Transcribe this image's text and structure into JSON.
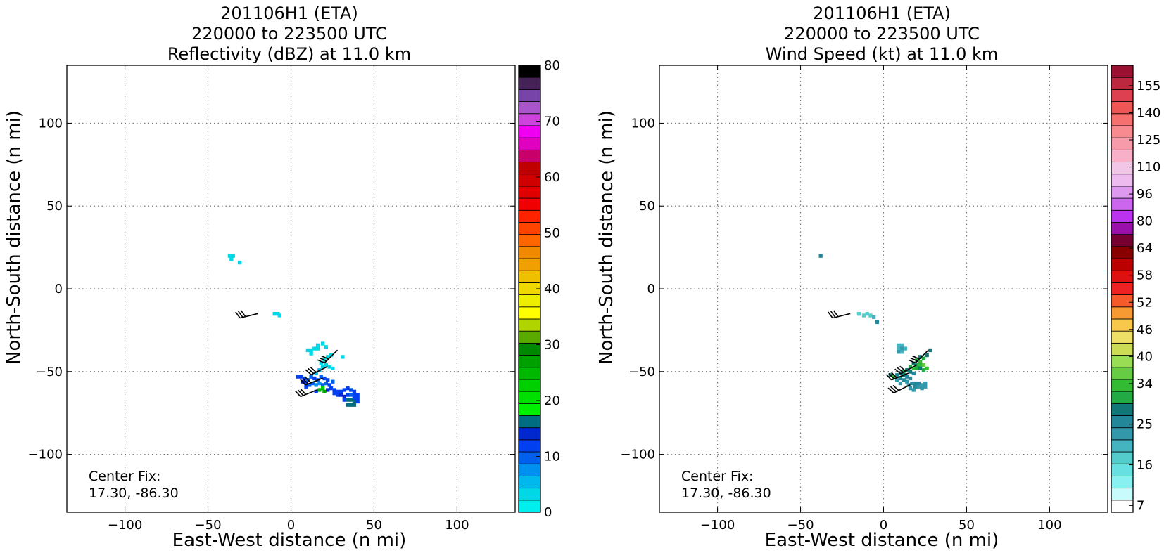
{
  "chart_data": [
    {
      "type": "heatmap",
      "title": [
        "201106H1 (ETA)",
        "220000 to 223500 UTC",
        "Reflectivity (dBZ) at 11.0 km"
      ],
      "xlabel": "East-West distance (n mi)",
      "ylabel": "North-South distance (n mi)",
      "xlim": [
        -135,
        135
      ],
      "ylim": [
        -135,
        135
      ],
      "xticks": [
        -100,
        -50,
        0,
        50,
        100
      ],
      "yticks": [
        -100,
        -50,
        0,
        50,
        100
      ],
      "grid": true,
      "annotation": [
        "Center Fix:",
        "17.30, -86.30"
      ],
      "colorbar": {
        "ticks": [
          "0",
          "10",
          "20",
          "30",
          "40",
          "50",
          "60",
          "70",
          "80"
        ],
        "tick_values": [
          0,
          10,
          20,
          30,
          40,
          50,
          60,
          70,
          80
        ],
        "range": [
          0,
          80
        ],
        "colors": [
          "#00eeee",
          "#00d8e6",
          "#00b8ee",
          "#0090f0",
          "#0060ee",
          "#0040f0",
          "#0028cc",
          "#006e80",
          "#00ee00",
          "#00e000",
          "#00d000",
          "#00b800",
          "#00a000",
          "#008800",
          "#5aaa00",
          "#b0d400",
          "#ffff00",
          "#eeee00",
          "#eed800",
          "#eec000",
          "#f0a000",
          "#f08800",
          "#ff6600",
          "#ff4400",
          "#ff2200",
          "#f00000",
          "#e00000",
          "#d00000",
          "#c00000",
          "#c8006a",
          "#e000c0",
          "#f000f0",
          "#cc44dd",
          "#aa55cc",
          "#7744aa",
          "#442255",
          "#000000"
        ]
      },
      "cells": [
        {
          "x": -37,
          "y": 20,
          "v": 1
        },
        {
          "x": -35,
          "y": 20,
          "v": 1
        },
        {
          "x": -36,
          "y": 18,
          "v": 1
        },
        {
          "x": -31,
          "y": 16,
          "v": 1
        },
        {
          "x": -10,
          "y": -15,
          "v": 1
        },
        {
          "x": -8,
          "y": -15,
          "v": 1
        },
        {
          "x": -7,
          "y": -16,
          "v": 1
        },
        {
          "x": 10,
          "y": -37,
          "v": 1
        },
        {
          "x": 12,
          "y": -37,
          "v": 1
        },
        {
          "x": 14,
          "y": -36,
          "v": 1
        },
        {
          "x": 16,
          "y": -36,
          "v": 1
        },
        {
          "x": 16,
          "y": -34,
          "v": 1
        },
        {
          "x": 19,
          "y": -33,
          "v": 1
        },
        {
          "x": 12,
          "y": -39,
          "v": 1
        },
        {
          "x": 21,
          "y": -35,
          "v": 1
        },
        {
          "x": 22,
          "y": -41,
          "v": 1
        },
        {
          "x": 20,
          "y": -43,
          "v": 1
        },
        {
          "x": 18,
          "y": -45,
          "v": 1
        },
        {
          "x": 24,
          "y": -40,
          "v": 1
        },
        {
          "x": 19,
          "y": -47,
          "v": 1
        },
        {
          "x": 21,
          "y": -46,
          "v": 1
        },
        {
          "x": 23,
          "y": -47,
          "v": 1
        },
        {
          "x": 25,
          "y": -48,
          "v": 1
        },
        {
          "x": 31,
          "y": -41,
          "v": 1
        },
        {
          "x": 17,
          "y": -49,
          "v": 2
        },
        {
          "x": 15,
          "y": -51,
          "v": 2
        },
        {
          "x": 4,
          "y": -53,
          "v": 5
        },
        {
          "x": 6,
          "y": -53,
          "v": 5
        },
        {
          "x": 8,
          "y": -54,
          "v": 5
        },
        {
          "x": 10,
          "y": -55,
          "v": 4
        },
        {
          "x": 12,
          "y": -53,
          "v": 4
        },
        {
          "x": 14,
          "y": -54,
          "v": 5
        },
        {
          "x": 16,
          "y": -55,
          "v": 4
        },
        {
          "x": 18,
          "y": -53,
          "v": 4
        },
        {
          "x": 20,
          "y": -54,
          "v": 5
        },
        {
          "x": 22,
          "y": -55,
          "v": 5
        },
        {
          "x": 9,
          "y": -57,
          "v": 5
        },
        {
          "x": 11,
          "y": -58,
          "v": 4
        },
        {
          "x": 13,
          "y": -57,
          "v": 4
        },
        {
          "x": 15,
          "y": -58,
          "v": 3
        },
        {
          "x": 17,
          "y": -57,
          "v": 3
        },
        {
          "x": 19,
          "y": -58,
          "v": 4
        },
        {
          "x": 21,
          "y": -57,
          "v": 4
        },
        {
          "x": 23,
          "y": -58,
          "v": 5
        },
        {
          "x": 24,
          "y": -60,
          "v": 5
        },
        {
          "x": 26,
          "y": -61,
          "v": 5
        },
        {
          "x": 28,
          "y": -62,
          "v": 5
        },
        {
          "x": 26,
          "y": -63,
          "v": 5
        },
        {
          "x": 28,
          "y": -64,
          "v": 5
        },
        {
          "x": 30,
          "y": -62,
          "v": 5
        },
        {
          "x": 32,
          "y": -61,
          "v": 5
        },
        {
          "x": 34,
          "y": -60,
          "v": 5
        },
        {
          "x": 36,
          "y": -61,
          "v": 5
        },
        {
          "x": 38,
          "y": -62,
          "v": 5
        },
        {
          "x": 30,
          "y": -64,
          "v": 6
        },
        {
          "x": 32,
          "y": -65,
          "v": 6
        },
        {
          "x": 34,
          "y": -64,
          "v": 5
        },
        {
          "x": 36,
          "y": -64,
          "v": 4
        },
        {
          "x": 38,
          "y": -64,
          "v": 5
        },
        {
          "x": 40,
          "y": -64,
          "v": 5
        },
        {
          "x": 40,
          "y": -66,
          "v": 5
        },
        {
          "x": 38,
          "y": -66,
          "v": 5
        },
        {
          "x": 34,
          "y": -67,
          "v": 7
        },
        {
          "x": 36,
          "y": -67,
          "v": 7
        },
        {
          "x": 38,
          "y": -68,
          "v": 7
        },
        {
          "x": 34,
          "y": -70,
          "v": 7
        },
        {
          "x": 36,
          "y": -70,
          "v": 7
        },
        {
          "x": 38,
          "y": -70,
          "v": 7
        },
        {
          "x": 40,
          "y": -68,
          "v": 5
        },
        {
          "x": 32,
          "y": -67,
          "v": 5
        },
        {
          "x": 19,
          "y": -60,
          "v": 10
        },
        {
          "x": 17,
          "y": -61,
          "v": 11
        },
        {
          "x": 20,
          "y": -62,
          "v": 12
        },
        {
          "x": 15,
          "y": -62,
          "v": 5
        },
        {
          "x": 22,
          "y": -61,
          "v": 6
        },
        {
          "x": 7,
          "y": -56,
          "v": 6
        },
        {
          "x": 9,
          "y": -59,
          "v": 5
        },
        {
          "x": 25,
          "y": -56,
          "v": 4
        }
      ],
      "barbs": [
        {
          "x": -20,
          "y": -15,
          "u": -12,
          "v": -3
        },
        {
          "x": 28,
          "y": -37,
          "u": -8,
          "v": -8
        },
        {
          "x": 22,
          "y": -47,
          "u": -10,
          "v": -5
        },
        {
          "x": 19,
          "y": -54,
          "u": -10,
          "v": -4
        },
        {
          "x": 16,
          "y": -61,
          "u": -10,
          "v": -4
        }
      ]
    },
    {
      "type": "heatmap",
      "title": [
        "201106H1 (ETA)",
        "220000 to 223500 UTC",
        "Wind Speed (kt) at 11.0 km"
      ],
      "xlabel": "East-West distance (n mi)",
      "ylabel": "North-South distance (n mi)",
      "xlim": [
        -135,
        135
      ],
      "ylim": [
        -135,
        135
      ],
      "xticks": [
        -100,
        -50,
        0,
        50,
        100
      ],
      "yticks": [
        -100,
        -50,
        0,
        50,
        100
      ],
      "grid": true,
      "annotation": [
        "Center Fix:",
        "17.30, -86.30"
      ],
      "colorbar": {
        "ticks": [
          "7",
          "16",
          "25",
          "34",
          "40",
          "46",
          "52",
          "58",
          "64",
          "80",
          "96",
          "110",
          "125",
          "140",
          "155"
        ],
        "tick_index": [
          0,
          3,
          6,
          9,
          11,
          13,
          15,
          17,
          19,
          21,
          23,
          25,
          27,
          29,
          31
        ],
        "colors": [
          "#ffffff",
          "#c8fcfc",
          "#88f0f0",
          "#66e0e0",
          "#55cccc",
          "#44b4c0",
          "#3399aa",
          "#228899",
          "#117777",
          "#22aa44",
          "#33bb33",
          "#66cc44",
          "#99dd55",
          "#ccdd55",
          "#eee066",
          "#f7c84a",
          "#f79a33",
          "#f75a2a",
          "#ee2222",
          "#dd1111",
          "#bb0000",
          "#880000",
          "#770033",
          "#9911aa",
          "#bb33ee",
          "#cc66ee",
          "#dd99ee",
          "#eebbee",
          "#f2c6e6",
          "#f7b0c8",
          "#f79aaa",
          "#f88a90",
          "#f77070",
          "#ee5555",
          "#dd4050",
          "#bb2840",
          "#991030"
        ],
        "n_bins": 33
      },
      "cells": [
        {
          "x": -38,
          "y": 20,
          "v": 7
        },
        {
          "x": -15,
          "y": -15,
          "v": 4
        },
        {
          "x": -12,
          "y": -16,
          "v": 4
        },
        {
          "x": -10,
          "y": -15,
          "v": 4
        },
        {
          "x": -8,
          "y": -16,
          "v": 4
        },
        {
          "x": -6,
          "y": -17,
          "v": 5
        },
        {
          "x": -4,
          "y": -20,
          "v": 7
        },
        {
          "x": 9,
          "y": -34,
          "v": 5
        },
        {
          "x": 11,
          "y": -34,
          "v": 5
        },
        {
          "x": 9,
          "y": -36,
          "v": 5
        },
        {
          "x": 11,
          "y": -36,
          "v": 6
        },
        {
          "x": 13,
          "y": -36,
          "v": 5
        },
        {
          "x": 9,
          "y": -38,
          "v": 6
        },
        {
          "x": 11,
          "y": -38,
          "v": 5
        },
        {
          "x": 22,
          "y": -41,
          "v": 8
        },
        {
          "x": 24,
          "y": -42,
          "v": 9
        },
        {
          "x": 26,
          "y": -40,
          "v": 8
        },
        {
          "x": 28,
          "y": -37,
          "v": 8
        },
        {
          "x": 20,
          "y": -43,
          "v": 9
        },
        {
          "x": 22,
          "y": -44,
          "v": 10
        },
        {
          "x": 24,
          "y": -46,
          "v": 11
        },
        {
          "x": 22,
          "y": -46,
          "v": 10
        },
        {
          "x": 20,
          "y": -46,
          "v": 9
        },
        {
          "x": 18,
          "y": -45,
          "v": 8
        },
        {
          "x": 16,
          "y": -47,
          "v": 9
        },
        {
          "x": 18,
          "y": -48,
          "v": 10
        },
        {
          "x": 20,
          "y": -48,
          "v": 9
        },
        {
          "x": 22,
          "y": -48,
          "v": 8
        },
        {
          "x": 14,
          "y": -49,
          "v": 8
        },
        {
          "x": 12,
          "y": -50,
          "v": 9
        },
        {
          "x": 10,
          "y": -51,
          "v": 8
        },
        {
          "x": 8,
          "y": -52,
          "v": 7
        },
        {
          "x": 6,
          "y": -53,
          "v": 10
        },
        {
          "x": 4,
          "y": -52,
          "v": 8
        },
        {
          "x": 16,
          "y": -50,
          "v": 8
        },
        {
          "x": 18,
          "y": -51,
          "v": 7
        },
        {
          "x": 12,
          "y": -52,
          "v": 8
        },
        {
          "x": 14,
          "y": -53,
          "v": 7
        },
        {
          "x": 10,
          "y": -54,
          "v": 7
        },
        {
          "x": 12,
          "y": -55,
          "v": 7
        },
        {
          "x": 14,
          "y": -56,
          "v": 6
        },
        {
          "x": 16,
          "y": -54,
          "v": 7
        },
        {
          "x": 8,
          "y": -55,
          "v": 6
        },
        {
          "x": 10,
          "y": -57,
          "v": 6
        },
        {
          "x": 15,
          "y": -58,
          "v": 6
        },
        {
          "x": 17,
          "y": -57,
          "v": 7
        },
        {
          "x": 19,
          "y": -57,
          "v": 7
        },
        {
          "x": 21,
          "y": -57,
          "v": 7
        },
        {
          "x": 23,
          "y": -58,
          "v": 6
        },
        {
          "x": 25,
          "y": -57,
          "v": 6
        },
        {
          "x": 19,
          "y": -59,
          "v": 7
        },
        {
          "x": 21,
          "y": -59,
          "v": 6
        },
        {
          "x": 23,
          "y": -60,
          "v": 6
        },
        {
          "x": 25,
          "y": -59,
          "v": 6
        },
        {
          "x": 18,
          "y": -61,
          "v": 6
        },
        {
          "x": 16,
          "y": -60,
          "v": 6
        },
        {
          "x": 24,
          "y": -49,
          "v": 9
        },
        {
          "x": 26,
          "y": -48,
          "v": 10
        }
      ],
      "barbs": [
        {
          "x": -20,
          "y": -15,
          "u": -12,
          "v": -3
        },
        {
          "x": 27,
          "y": -37,
          "u": -8,
          "v": -8
        },
        {
          "x": 20,
          "y": -46,
          "u": -9,
          "v": -5
        },
        {
          "x": 15,
          "y": -51,
          "u": -10,
          "v": -4
        },
        {
          "x": 16,
          "y": -58,
          "u": -10,
          "v": -5
        }
      ]
    }
  ]
}
